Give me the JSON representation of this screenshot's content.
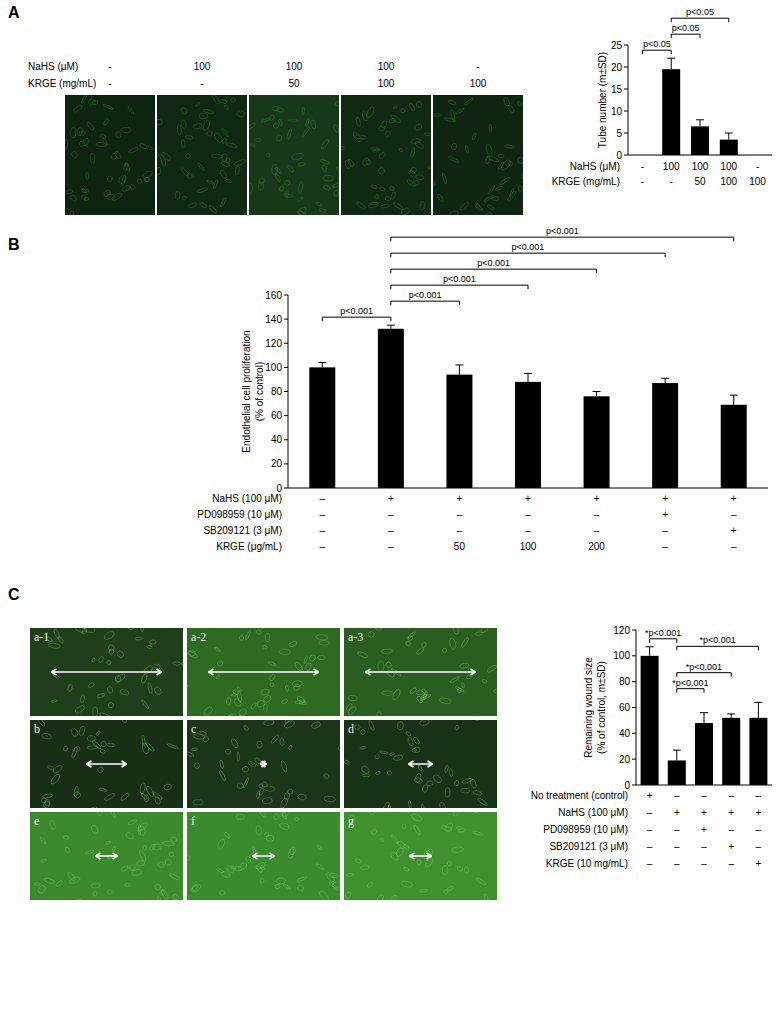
{
  "chart_data": [
    {
      "type": "bar",
      "panel": "A",
      "ylabel": [
        "Tube number (m±SD)"
      ],
      "categories": [
        null,
        null,
        null,
        null,
        null
      ],
      "values": [
        0,
        19.5,
        6.5,
        3.5,
        0
      ],
      "errors": [
        null,
        2.5,
        1.5,
        1.5,
        null
      ],
      "color": "#000000",
      "ylim": [
        0,
        25
      ],
      "yticks": [
        0,
        5,
        10,
        15,
        20,
        25
      ],
      "rows": [
        {
          "label": "NaHS (μM)",
          "values": [
            "-",
            "100",
            "100",
            "100",
            "-"
          ]
        },
        {
          "label": "KRGE (mg/mL)",
          "values": [
            "-",
            "-",
            "50",
            "100",
            "100"
          ]
        }
      ],
      "annotations": [
        {
          "text": "p<0.05",
          "from": 0,
          "to": 1
        },
        {
          "text": "p<0.05",
          "from": 1,
          "to": 2
        },
        {
          "text": "p<0.05",
          "from": 1,
          "to": 3
        }
      ]
    },
    {
      "type": "bar",
      "panel": "B",
      "ylabel": [
        "Endothelial cell proliferation",
        "(% of control)"
      ],
      "categories": [
        null,
        null,
        null,
        null,
        null,
        null,
        null
      ],
      "values": [
        100,
        132,
        94,
        88,
        76,
        87,
        69
      ],
      "errors": [
        4,
        3,
        8,
        7,
        4,
        4,
        8
      ],
      "color": "#000000",
      "ylim": [
        0,
        160
      ],
      "yticks": [
        0,
        20,
        40,
        60,
        80,
        100,
        120,
        140,
        160
      ],
      "rows": [
        {
          "label": "NaHS (100 μM)",
          "values": [
            "–",
            "+",
            "+",
            "+",
            "+",
            "+",
            "+"
          ]
        },
        {
          "label": "PD098959 (10 μM)",
          "values": [
            "–",
            "–",
            "–",
            "–",
            "–",
            "+",
            "–"
          ]
        },
        {
          "label": "SB209121 (3 μM)",
          "values": [
            "–",
            "–",
            "–",
            "–",
            "–",
            "–",
            "+"
          ]
        },
        {
          "label": "KRGE (μg/mL)",
          "values": [
            "–",
            "–",
            "50",
            "100",
            "200",
            "–",
            "–"
          ]
        }
      ],
      "annotations": [
        {
          "text": "p<0.001",
          "from": 0,
          "to": 1
        },
        {
          "text": "p<0.001",
          "from": 1,
          "to": 2
        },
        {
          "text": "p<0.001",
          "from": 1,
          "to": 3
        },
        {
          "text": "p<0.001",
          "from": 1,
          "to": 4
        },
        {
          "text": "p<0.001",
          "from": 1,
          "to": 5
        },
        {
          "text": "p<0.001",
          "from": 1,
          "to": 6
        }
      ]
    },
    {
      "type": "bar",
      "panel": "C",
      "ylabel": [
        "Remaining wound size",
        "(% of control, m±SD)"
      ],
      "categories": [
        null,
        null,
        null,
        null,
        null
      ],
      "values": [
        100,
        19,
        48,
        52,
        52
      ],
      "errors": [
        7,
        8,
        8,
        3,
        12
      ],
      "color": "#000000",
      "ylim": [
        0,
        120
      ],
      "yticks": [
        0,
        20,
        40,
        60,
        80,
        100,
        120
      ],
      "rows": [
        {
          "label": "No treatment (control)",
          "values": [
            "+",
            "–",
            "–",
            "–",
            "–"
          ]
        },
        {
          "label": "NaHS (100 μM)",
          "values": [
            "–",
            "+",
            "+",
            "+",
            "+"
          ]
        },
        {
          "label": "PD098959 (10 μM)",
          "values": [
            "–",
            "–",
            "+",
            "–",
            "–"
          ]
        },
        {
          "label": "SB209121 (3 μM)",
          "values": [
            "–",
            "–",
            "–",
            "+",
            "–"
          ]
        },
        {
          "label": "KRGE (10 mg/mL)",
          "values": [
            "–",
            "–",
            "–",
            "–",
            "+"
          ]
        }
      ],
      "annotations": [
        {
          "text": "*p<0.001",
          "from": 0,
          "to": 1
        },
        {
          "text": "*p<0.001",
          "from": 1,
          "to": 2
        },
        {
          "text": "*p<0.001",
          "from": 1,
          "to": 3
        },
        {
          "text": "*p<0.001",
          "from": 1,
          "to": 4
        }
      ]
    }
  ],
  "images": {
    "A": {
      "rows": [
        {
          "label": "NaHS (μM)",
          "values": [
            "-",
            "100",
            "100",
            "100",
            "-"
          ]
        },
        {
          "label": "KRGE (mg/mL)",
          "values": [
            "-",
            "-",
            "50",
            "100",
            "100"
          ]
        }
      ]
    },
    "C": {
      "labels": [
        "a-1",
        "a-2",
        "a-3",
        "b",
        "c",
        "d",
        "e",
        "f",
        "g"
      ]
    }
  }
}
